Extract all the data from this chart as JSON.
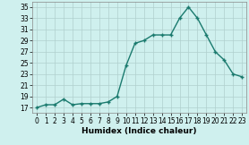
{
  "x": [
    0,
    1,
    2,
    3,
    4,
    5,
    6,
    7,
    8,
    9,
    10,
    11,
    12,
    13,
    14,
    15,
    16,
    17,
    18,
    19,
    20,
    21,
    22,
    23
  ],
  "y": [
    17,
    17.5,
    17.5,
    18.5,
    17.5,
    17.7,
    17.7,
    17.7,
    18,
    19,
    24.5,
    28.5,
    29,
    30,
    30,
    30,
    33,
    35,
    33,
    30,
    27,
    25.5,
    23,
    22.5
  ],
  "line_color": "#1a7a6e",
  "marker": "+",
  "marker_size": 3,
  "marker_lw": 1.0,
  "bg_color": "#cff0ee",
  "grid_color": "#b0d0ce",
  "xlabel": "Humidex (Indice chaleur)",
  "ylim": [
    16,
    36
  ],
  "xlim": [
    -0.5,
    23.5
  ],
  "yticks": [
    17,
    19,
    21,
    23,
    25,
    27,
    29,
    31,
    33,
    35
  ],
  "xticks": [
    0,
    1,
    2,
    3,
    4,
    5,
    6,
    7,
    8,
    9,
    10,
    11,
    12,
    13,
    14,
    15,
    16,
    17,
    18,
    19,
    20,
    21,
    22,
    23
  ],
  "xlabel_fontsize": 6.5,
  "tick_fontsize": 5.5,
  "line_width": 1.0,
  "linestyle": "-"
}
